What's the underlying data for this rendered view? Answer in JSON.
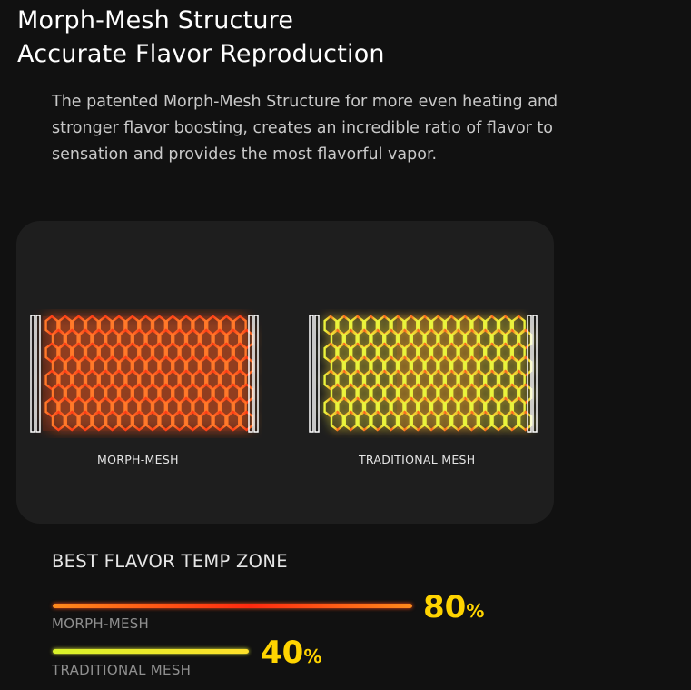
{
  "header": {
    "title_line1": "Morph-Mesh Structure",
    "title_line2": "Accurate Flavor Reproduction"
  },
  "description": "The patented Morph-Mesh Structure for more even heating and stronger flavor boosting, creates an incredible ratio of flavor to sensation and provides the most flavorful vapor.",
  "comparison": {
    "morph_label": "MORPH-MESH",
    "traditional_label": "TRADITIONAL MESH"
  },
  "temp_zone": {
    "title": "BEST FLAVOR TEMP ZONE",
    "bars": [
      {
        "label": "MORPH-MESH",
        "value": "80",
        "unit": "%",
        "fraction": 0.8
      },
      {
        "label": "TRADITIONAL MESH",
        "value": "40",
        "unit": "%",
        "fraction": 0.4
      }
    ]
  },
  "colors": {
    "background": "#111111",
    "panel": "#1e1e1e",
    "accent_yellow": "#ffd400",
    "morph_red": "#ff3b1a",
    "traditional_yellow": "#e8f23a"
  }
}
